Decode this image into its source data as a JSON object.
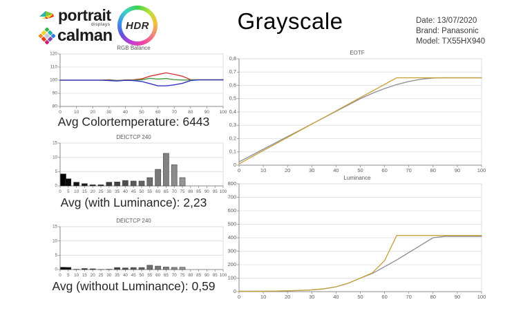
{
  "header": {
    "logo": {
      "portrait_text": "portrait",
      "displays_text": "displays",
      "calman_text": "calman",
      "hdr_text": "HDR"
    },
    "title": "Grayscale",
    "info_lines": [
      "Date: 13/07/2020",
      "Brand: Panasonic",
      "Model: TX55HX940"
    ]
  },
  "captions": {
    "colortemp": "Avg Colortemperature: 6443",
    "with_luminance": "Avg (with Luminance): 2,23",
    "without_luminance": "Avg (without Luminance): 0,59"
  },
  "colors": {
    "red_line": "#d03030",
    "green_line": "#3f9b3f",
    "blue_line": "#3030c8",
    "gold_line": "#c7a33c",
    "gray_line": "#8d8d95"
  },
  "chart_data": [
    {
      "type": "line",
      "title": "RGB Balance",
      "x": [
        0,
        5,
        10,
        15,
        20,
        25,
        30,
        35,
        40,
        45,
        50,
        55,
        60,
        65,
        70,
        75,
        80,
        85,
        90,
        95,
        100
      ],
      "series": [
        {
          "name": "red",
          "color": "#d03030",
          "values": [
            100,
            100,
            100,
            100,
            100,
            100,
            100.3,
            99.8,
            100.2,
            100.3,
            101,
            103,
            104.3,
            105.6,
            104.4,
            103,
            100.4,
            100.3,
            100.3,
            100.3,
            100.3
          ]
        },
        {
          "name": "green",
          "color": "#3f9b3f",
          "values": [
            100,
            100,
            100,
            100,
            100,
            100,
            100,
            99.7,
            100,
            100,
            100.3,
            101.4,
            100.8,
            101.3,
            100.4,
            100.1,
            100.2,
            100.3,
            100.3,
            100.3,
            100.3
          ]
        },
        {
          "name": "blue",
          "color": "#3030c8",
          "values": [
            100,
            100,
            100,
            100,
            100,
            100,
            99.7,
            99.4,
            99.9,
            99.7,
            99,
            97.4,
            95.7,
            95.7,
            96.4,
            97.6,
            99.7,
            100.2,
            100.2,
            100.2,
            100.2
          ]
        }
      ],
      "xlim": [
        0,
        100
      ],
      "ylim": [
        80,
        120
      ],
      "xticks": [
        0,
        10,
        20,
        30,
        40,
        50,
        60,
        70,
        80,
        90,
        100
      ],
      "yticks": [
        80,
        90,
        100,
        110,
        120
      ],
      "ytick_labels": [
        "80",
        "90",
        "100",
        "110",
        "120"
      ],
      "tick_font": 6.5,
      "legend": "none",
      "grid": true
    },
    {
      "type": "bar",
      "title": "DEICTCP 240",
      "categories": [
        0,
        5,
        10,
        15,
        20,
        25,
        30,
        35,
        40,
        45,
        50,
        55,
        60,
        65,
        70,
        75,
        80,
        85,
        90,
        95,
        100
      ],
      "values": [
        4.2,
        2.5,
        1.3,
        0.8,
        0.4,
        0.4,
        1.3,
        1.4,
        1.9,
        1.7,
        1.7,
        2.9,
        5.8,
        11.4,
        7.4,
        2.9,
        0,
        0,
        0,
        0,
        0
      ],
      "xlim": [
        0,
        100
      ],
      "ylim": [
        0,
        15
      ],
      "yticks": [
        0,
        5,
        10,
        15
      ],
      "ytick_labels": [
        "0",
        "5",
        "10",
        "15"
      ],
      "bar_color_rule": "grayscale-by-category",
      "tick_font": 6.2,
      "legend": "none",
      "grid": true
    },
    {
      "type": "bar",
      "title": "DEICTCP 240",
      "categories": [
        0,
        5,
        10,
        15,
        20,
        25,
        30,
        35,
        40,
        45,
        50,
        55,
        60,
        65,
        70,
        75,
        80,
        85,
        90,
        95,
        100
      ],
      "values": [
        0.8,
        0.75,
        0.1,
        0.35,
        0.25,
        0.05,
        0.1,
        0.7,
        0.55,
        0.7,
        0.7,
        1.5,
        1.2,
        0.9,
        0.75,
        0.8,
        0,
        0,
        0,
        0,
        0
      ],
      "xlim": [
        0,
        100
      ],
      "ylim": [
        0,
        15
      ],
      "yticks": [
        0,
        5,
        10,
        15
      ],
      "ytick_labels": [
        "0",
        "5",
        "10",
        "15"
      ],
      "bar_color_rule": "grayscale-by-category",
      "tick_font": 6.2,
      "legend": "none",
      "grid": true
    },
    {
      "type": "line",
      "title": "EOTF",
      "x": [
        0,
        5,
        10,
        15,
        20,
        25,
        30,
        35,
        40,
        45,
        50,
        55,
        60,
        65,
        70,
        75,
        80,
        85,
        90,
        95,
        100
      ],
      "series": [
        {
          "name": "reference",
          "color": "#8d8d95",
          "values": [
            0.025,
            0.072,
            0.12,
            0.168,
            0.215,
            0.262,
            0.31,
            0.357,
            0.405,
            0.452,
            0.5,
            0.54,
            0.576,
            0.606,
            0.629,
            0.646,
            0.655,
            0.657,
            0.657,
            0.657,
            0.657
          ]
        },
        {
          "name": "measured",
          "color": "#c7a33c",
          "values": [
            0.01,
            0.06,
            0.11,
            0.159,
            0.209,
            0.259,
            0.309,
            0.358,
            0.408,
            0.458,
            0.508,
            0.557,
            0.607,
            0.657,
            0.657,
            0.657,
            0.657,
            0.657,
            0.657,
            0.657,
            0.657
          ]
        }
      ],
      "xlim": [
        0,
        100
      ],
      "ylim": [
        0,
        0.8
      ],
      "xticks": [
        0,
        10,
        20,
        30,
        40,
        50,
        60,
        70,
        80,
        90,
        100
      ],
      "yticks": [
        0,
        0.1,
        0.2,
        0.3,
        0.4,
        0.5,
        0.6,
        0.7,
        0.8
      ],
      "ytick_labels": [
        "0",
        "0,1",
        "0,2",
        "0,3",
        "0,4",
        "0,5",
        "0,6",
        "0,7",
        "0,8"
      ],
      "tick_font": 7.5,
      "legend": "none",
      "grid": true
    },
    {
      "type": "line",
      "title": "Luminance",
      "x": [
        0,
        5,
        10,
        15,
        20,
        25,
        30,
        35,
        40,
        45,
        50,
        55,
        60,
        65,
        70,
        75,
        80,
        85,
        90,
        95,
        100
      ],
      "series": [
        {
          "name": "reference",
          "color": "#8d8d95",
          "values": [
            3,
            3,
            3,
            4,
            6,
            9,
            13,
            21,
            36,
            62,
            100,
            135,
            185,
            235,
            290,
            345,
            400,
            410,
            410,
            410,
            410
          ]
        },
        {
          "name": "measured",
          "color": "#c7a33c",
          "values": [
            2,
            2,
            3,
            4,
            6,
            9,
            13,
            21,
            36,
            62,
            100,
            140,
            230,
            417,
            417,
            417,
            417,
            417,
            417,
            417,
            417
          ]
        }
      ],
      "xlim": [
        0,
        100
      ],
      "ylim": [
        0,
        800
      ],
      "xticks": [
        0,
        10,
        20,
        30,
        40,
        50,
        60,
        70,
        80,
        90,
        100
      ],
      "yticks": [
        0,
        100,
        200,
        300,
        400,
        500,
        600,
        700,
        800
      ],
      "ytick_labels": [
        "0",
        "100",
        "200",
        "300",
        "400",
        "500",
        "600",
        "700",
        "800"
      ],
      "tick_font": 7.5,
      "legend": "none",
      "grid": true
    }
  ],
  "calman_icon_colors": [
    "#35b44a",
    "#2db3a6",
    "#2a7de1",
    "#f5d327",
    "#c8cdd2",
    "#8e44ad",
    "#f08c1e",
    "#e8401f",
    "#d6186e"
  ]
}
